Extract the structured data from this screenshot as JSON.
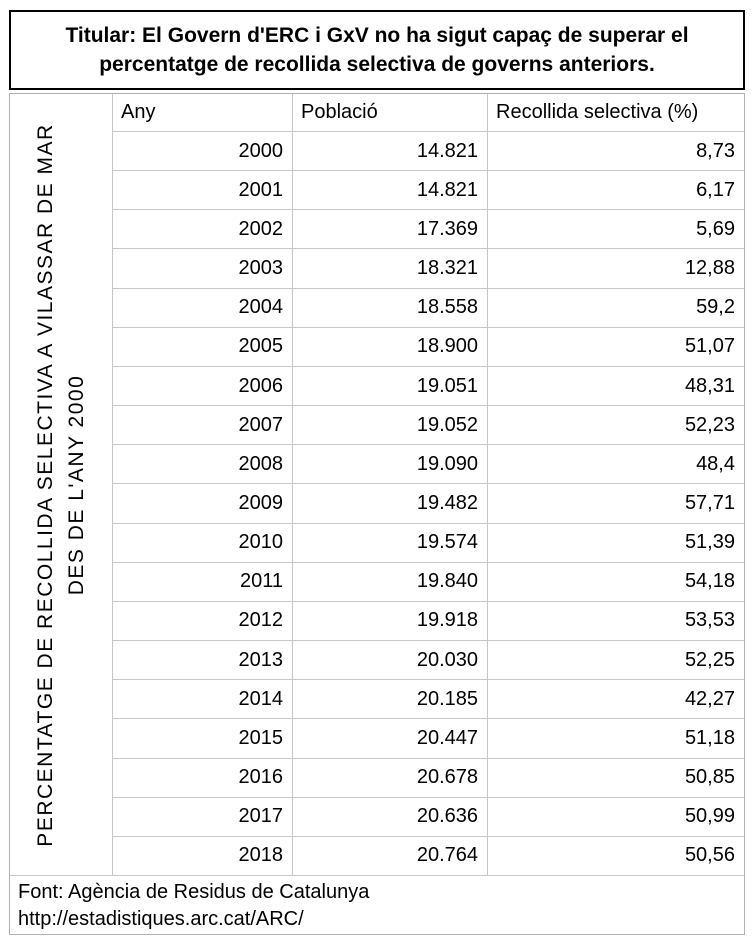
{
  "page": {
    "side_label_line1": "PERCENTATGE DE RECOLLIDA SELECTIVA A VILASSAR DE MAR",
    "side_label_line2": "DES DE L'ANY 2000",
    "source_line1": "Font: Agència de Residus de Catalunya",
    "source_line2": "http://estadistiques.arc.cat/ARC/"
  },
  "colors": {
    "background": "#ffffff",
    "text": "#000000",
    "title_border": "#000000",
    "grid_border": "#c6c6c6",
    "outer_border": "#b0b0b0"
  },
  "chart_data": {
    "type": "table",
    "title": "Titular: El Govern d'ERC i GxV no ha sigut capaç de superar el percentatge de recollida selectiva de governs anteriors.",
    "row_axis_label": "PERCENTATGE DE RECOLLIDA SELECTIVA A VILASSAR DE MAR DES DE L'ANY 2000",
    "columns": [
      "Any",
      "Població",
      "Recollida selectiva (%)"
    ],
    "rows": [
      [
        "2000",
        "14.821",
        "8,73"
      ],
      [
        "2001",
        "14.821",
        "6,17"
      ],
      [
        "2002",
        "17.369",
        "5,69"
      ],
      [
        "2003",
        "18.321",
        "12,88"
      ],
      [
        "2004",
        "18.558",
        "59,2"
      ],
      [
        "2005",
        "18.900",
        "51,07"
      ],
      [
        "2006",
        "19.051",
        "48,31"
      ],
      [
        "2007",
        "19.052",
        "52,23"
      ],
      [
        "2008",
        "19.090",
        "48,4"
      ],
      [
        "2009",
        "19.482",
        "57,71"
      ],
      [
        "2010",
        "19.574",
        "51,39"
      ],
      [
        "2011",
        "19.840",
        "54,18"
      ],
      [
        "2012",
        "19.918",
        "53,53"
      ],
      [
        "2013",
        "20.030",
        "52,25"
      ],
      [
        "2014",
        "20.185",
        "42,27"
      ],
      [
        "2015",
        "20.447",
        "51,18"
      ],
      [
        "2016",
        "20.678",
        "50,85"
      ],
      [
        "2017",
        "20.636",
        "50,99"
      ],
      [
        "2018",
        "20.764",
        "50,56"
      ]
    ],
    "source": "Font: Agència de Residus de Catalunya http://estadistiques.arc.cat/ARC/",
    "layout": {
      "grid": true,
      "legend": "none"
    }
  }
}
